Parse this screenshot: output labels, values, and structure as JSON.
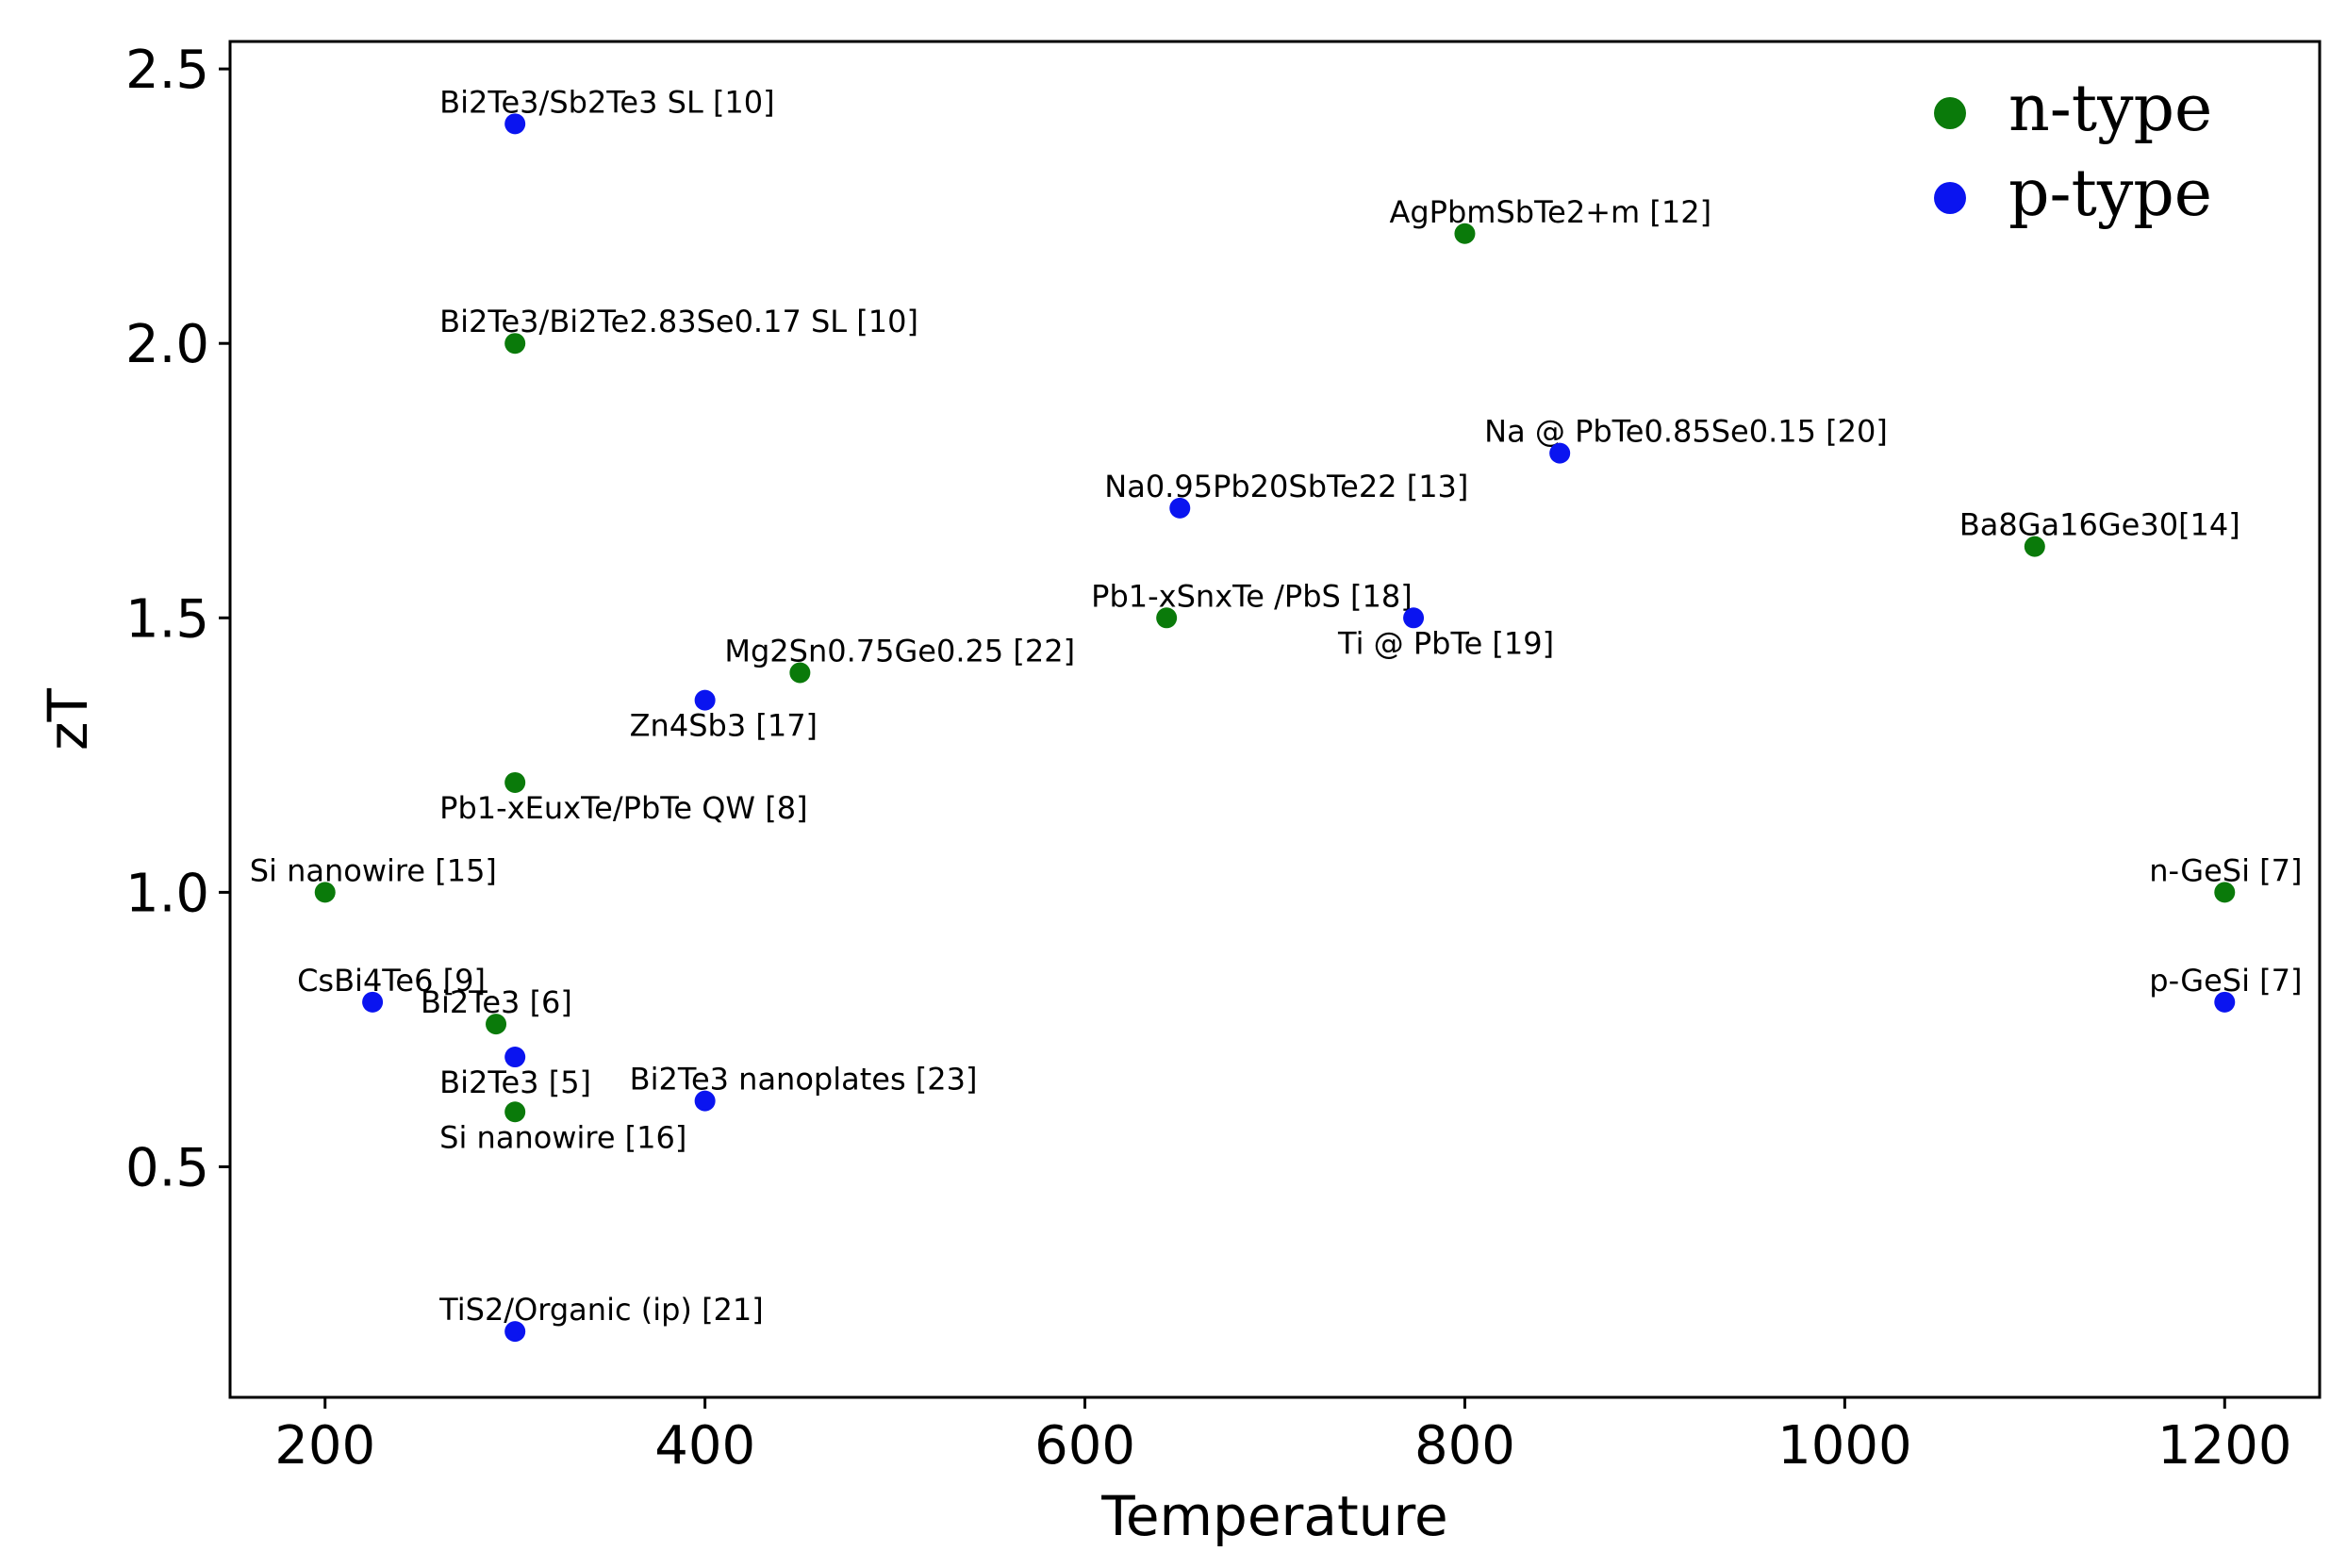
{
  "chart_data": {
    "type": "scatter",
    "title": "",
    "xlabel": "Temperature",
    "ylabel": "zT",
    "xlim": [
      150,
      1250
    ],
    "ylim": [
      0.08,
      2.55
    ],
    "xticks": [
      "200",
      "400",
      "600",
      "800",
      "1000",
      "1200"
    ],
    "xtick_values": [
      200,
      400,
      600,
      800,
      1000,
      1200
    ],
    "yticks": [
      "0.5",
      "1.0",
      "1.5",
      "2.0",
      "2.5"
    ],
    "ytick_values": [
      0.5,
      1.0,
      1.5,
      2.0,
      2.5
    ],
    "grid": false,
    "legend_position": "top-right",
    "series": [
      {
        "name": "n-type",
        "color": "#0a7a0a",
        "points": [
          {
            "x": 300,
            "y": 2.0,
            "label": "Bi2Te3/Bi2Te2.83Se0.17 SL [10]"
          },
          {
            "x": 800,
            "y": 2.2,
            "label": "AgPbmSbTe2+m [12]"
          },
          {
            "x": 1100,
            "y": 1.63,
            "label": "Ba8Ga16Ge30[14]"
          },
          {
            "x": 643,
            "y": 1.5,
            "label": "Pb1-xSnxTe /PbS [18]"
          },
          {
            "x": 450,
            "y": 1.4,
            "label": "Mg2Sn0.75Ge0.25 [22]"
          },
          {
            "x": 300,
            "y": 1.2,
            "label": "Pb1-xEuxTe/PbTe QW [8]"
          },
          {
            "x": 200,
            "y": 1.0,
            "label": "Si nanowire [15]"
          },
          {
            "x": 1200,
            "y": 1.0,
            "label": "n-GeSi [7]"
          },
          {
            "x": 290,
            "y": 0.76,
            "label": "Bi2Te3 [6]"
          },
          {
            "x": 300,
            "y": 0.6,
            "label": "Si nanowire [16]"
          }
        ]
      },
      {
        "name": "p-type",
        "color": "#0a14f0",
        "points": [
          {
            "x": 300,
            "y": 2.4,
            "label": "Bi2Te3/Sb2Te3 SL [10]"
          },
          {
            "x": 850,
            "y": 1.8,
            "label": "Na @ PbTe0.85Se0.15 [20]"
          },
          {
            "x": 650,
            "y": 1.7,
            "label": "Na0.95Pb20SbTe22 [13]"
          },
          {
            "x": 773,
            "y": 1.5,
            "label": "Ti @ PbTe [19]"
          },
          {
            "x": 400,
            "y": 1.35,
            "label": "Zn4Sb3 [17]"
          },
          {
            "x": 225,
            "y": 0.8,
            "label": "CsBi4Te6 [9]"
          },
          {
            "x": 1200,
            "y": 0.8,
            "label": "p-GeSi [7]"
          },
          {
            "x": 300,
            "y": 0.7,
            "label": "Bi2Te3 [5]"
          },
          {
            "x": 400,
            "y": 0.62,
            "label": "Bi2Te3 nanoplates [23]"
          },
          {
            "x": 300,
            "y": 0.2,
            "label": "TiS2/Organic (ip) [21]"
          }
        ]
      }
    ]
  }
}
